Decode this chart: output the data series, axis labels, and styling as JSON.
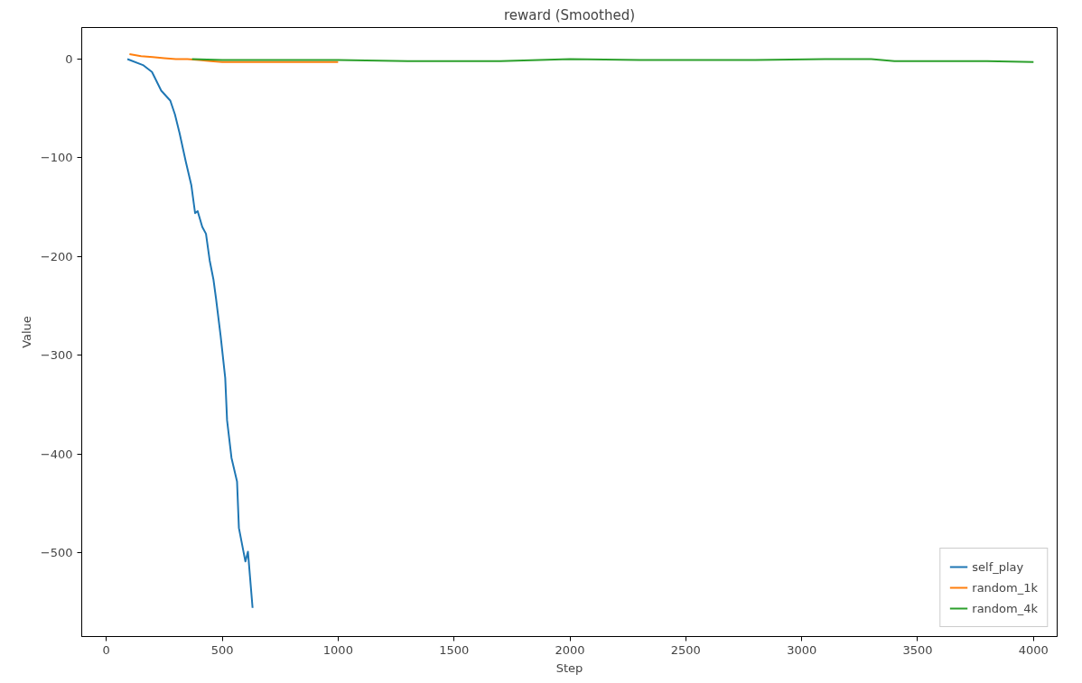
{
  "chart_data": {
    "type": "line",
    "title": "reward (Smoothed)",
    "xlabel": "Step",
    "ylabel": "Value",
    "xlim": [
      -106,
      4102
    ],
    "ylim": [
      -585,
      32
    ],
    "xticks": [
      0,
      500,
      1000,
      1500,
      2000,
      2500,
      3000,
      3500,
      4000
    ],
    "yticks": [
      {
        "value": 0,
        "label": "0"
      },
      {
        "value": -100,
        "label": "−100"
      },
      {
        "value": -200,
        "label": "−200"
      },
      {
        "value": -300,
        "label": "−300"
      },
      {
        "value": -400,
        "label": "−400"
      },
      {
        "value": -500,
        "label": "−500"
      }
    ],
    "grid": false,
    "legend": "bottom right",
    "line_style": "solid",
    "marker": "none",
    "series": [
      {
        "name": "self_play",
        "color": "#1f77b4",
        "x": [
          91,
          158,
          197,
          237,
          276,
          296,
          316,
          343,
          367,
          383,
          394,
          414,
          430,
          446,
          462,
          473,
          493,
          513,
          521,
          540,
          564,
          572,
          600,
          611,
          631
        ],
        "values": [
          0,
          -6,
          -13,
          -32,
          -42,
          -56,
          -75,
          -104,
          -128,
          -156,
          -154,
          -170,
          -177,
          -204,
          -223,
          -242,
          -280,
          -323,
          -366,
          -404,
          -428,
          -475,
          -509,
          -499,
          -556
        ]
      },
      {
        "name": "random_1k",
        "color": "#ff7f0e",
        "x": [
          100,
          150,
          200,
          250,
          300,
          350,
          400,
          450,
          500,
          600,
          700,
          800,
          900,
          1000
        ],
        "values": [
          5,
          3,
          2,
          1,
          0,
          0,
          -1,
          -2,
          -3,
          -3,
          -3,
          -3,
          -3,
          -3
        ]
      },
      {
        "name": "random_4k",
        "color": "#2ca02c",
        "x": [
          370,
          500,
          700,
          1000,
          1300,
          1500,
          1700,
          2000,
          2300,
          2500,
          2800,
          3100,
          3300,
          3400,
          3600,
          3800,
          4000
        ],
        "values": [
          0,
          -1,
          -1,
          -1,
          -2,
          -2,
          -2,
          0,
          -1,
          -1,
          -1,
          0,
          0,
          -2,
          -2,
          -2,
          -3
        ]
      }
    ]
  }
}
